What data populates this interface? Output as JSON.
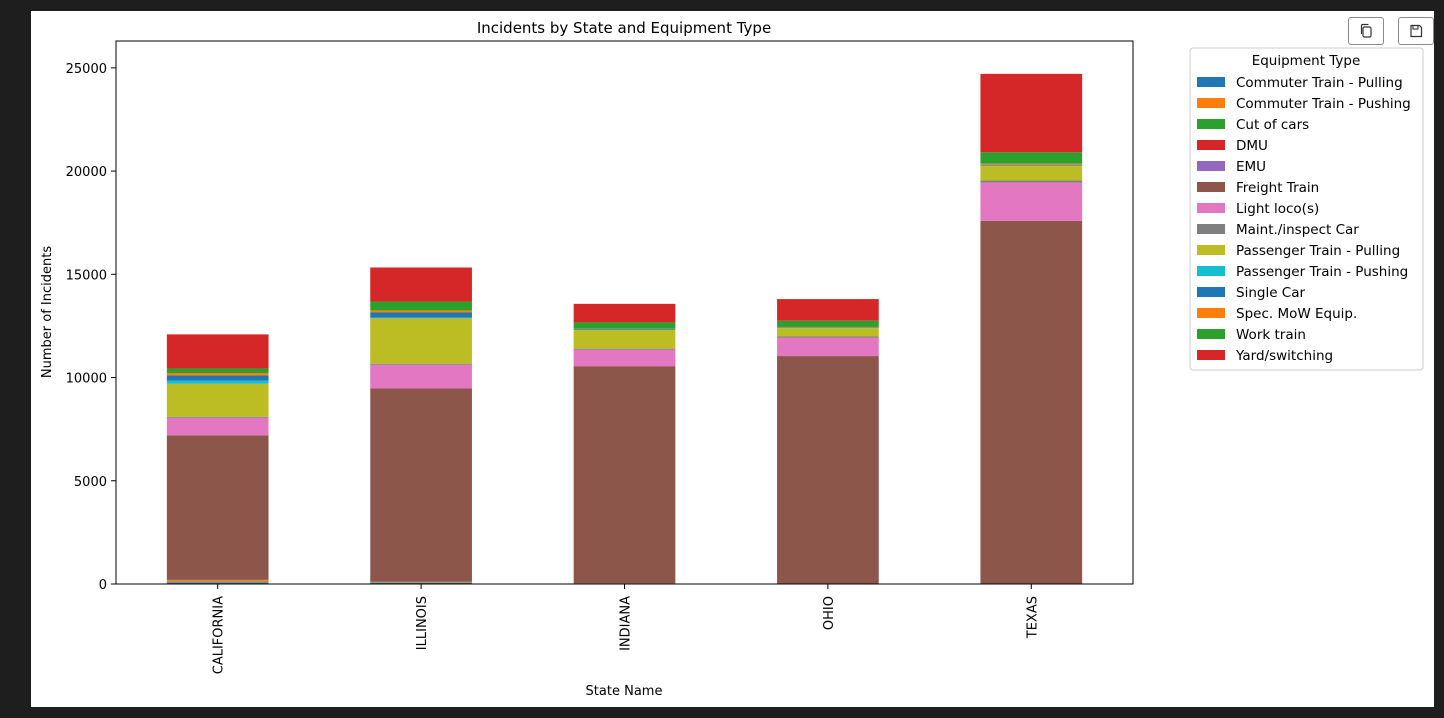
{
  "toolbar": {
    "copy_icon": "copy-icon",
    "save_icon": "save-icon"
  },
  "chart_data": {
    "type": "bar",
    "stacked": true,
    "title": "Incidents by State and Equipment Type",
    "xlabel": "State Name",
    "ylabel": "Number of Incidents",
    "ylim": [
      0,
      26300
    ],
    "yticks": [
      0,
      5000,
      10000,
      15000,
      20000,
      25000
    ],
    "legend_title": "Equipment Type",
    "legend_position": "outside-right-top",
    "categories": [
      "CALIFORNIA",
      "ILLINOIS",
      "INDIANA",
      "OHIO",
      "TEXAS"
    ],
    "series": [
      {
        "name": "Commuter Train - Pulling",
        "color": "#1f77b4",
        "values": [
          80,
          50,
          20,
          0,
          0
        ]
      },
      {
        "name": "Commuter Train - Pushing",
        "color": "#ff7f0e",
        "values": [
          80,
          30,
          0,
          0,
          0
        ]
      },
      {
        "name": "Cut of cars",
        "color": "#2ca02c",
        "values": [
          20,
          20,
          10,
          10,
          20
        ]
      },
      {
        "name": "DMU",
        "color": "#d62728",
        "values": [
          10,
          0,
          0,
          0,
          0
        ]
      },
      {
        "name": "EMU",
        "color": "#9467bd",
        "values": [
          10,
          20,
          0,
          0,
          0
        ]
      },
      {
        "name": "Freight Train",
        "color": "#8c564b",
        "values": [
          7000,
          9350,
          10520,
          11030,
          17570
        ]
      },
      {
        "name": "Light loco(s)",
        "color": "#e377c2",
        "values": [
          850,
          1150,
          800,
          900,
          1850
        ]
      },
      {
        "name": "Maint./inspect Car",
        "color": "#7f7f7f",
        "values": [
          50,
          50,
          50,
          50,
          100
        ]
      },
      {
        "name": "Passenger Train - Pulling",
        "color": "#bcbd22",
        "values": [
          1600,
          2200,
          900,
          400,
          700
        ]
      },
      {
        "name": "Passenger Train - Pushing",
        "color": "#17becf",
        "values": [
          150,
          30,
          20,
          10,
          20
        ]
      },
      {
        "name": "Single Car",
        "color": "#1f77b4",
        "values": [
          250,
          250,
          30,
          20,
          30
        ]
      },
      {
        "name": "Spec. MoW Equip.",
        "color": "#ff7f0e",
        "values": [
          120,
          100,
          20,
          30,
          70
        ]
      },
      {
        "name": "Work train",
        "color": "#2ca02c",
        "values": [
          220,
          430,
          300,
          300,
          550
        ]
      },
      {
        "name": "Yard/switching",
        "color": "#d62728",
        "values": [
          1650,
          1650,
          900,
          1050,
          3800
        ]
      }
    ]
  }
}
